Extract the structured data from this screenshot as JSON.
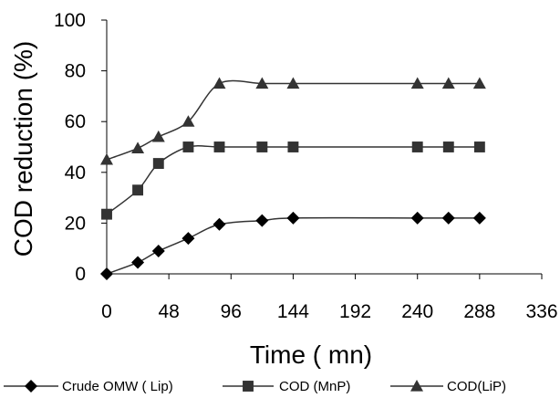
{
  "chart_data": {
    "type": "line",
    "xlabel": "Time ( mn)",
    "ylabel": "COD reduction (%)",
    "xlim": [
      0,
      336
    ],
    "ylim": [
      0,
      100
    ],
    "x_ticks": [
      "0",
      "48",
      "96",
      "144",
      "192",
      "240",
      "288",
      "336"
    ],
    "y_ticks": [
      "0",
      "20",
      "40",
      "60",
      "80",
      "100"
    ],
    "grid": false,
    "legend_position": "bottom",
    "series": [
      {
        "name": "Crude OMW ( Lip)",
        "marker": "diamond",
        "points": [
          [
            0,
            0
          ],
          [
            24,
            4.5
          ],
          [
            40,
            9
          ],
          [
            63,
            14
          ],
          [
            87,
            19.5
          ],
          [
            120,
            21
          ],
          [
            144,
            22
          ],
          [
            240,
            22
          ],
          [
            264,
            22
          ],
          [
            288,
            22
          ]
        ]
      },
      {
        "name": "COD (MnP)",
        "marker": "square",
        "points": [
          [
            0,
            23.5
          ],
          [
            24,
            33
          ],
          [
            40,
            43.5
          ],
          [
            63,
            50
          ],
          [
            87,
            50
          ],
          [
            120,
            50
          ],
          [
            144,
            50
          ],
          [
            240,
            50
          ],
          [
            264,
            50
          ],
          [
            288,
            50
          ]
        ]
      },
      {
        "name": "COD(LiP)",
        "marker": "triangle",
        "points": [
          [
            0,
            45
          ],
          [
            24,
            49.5
          ],
          [
            40,
            54
          ],
          [
            63,
            60
          ],
          [
            87,
            75
          ],
          [
            120,
            75
          ],
          [
            144,
            75
          ],
          [
            240,
            75
          ],
          [
            264,
            75
          ],
          [
            288,
            75
          ]
        ]
      }
    ]
  }
}
